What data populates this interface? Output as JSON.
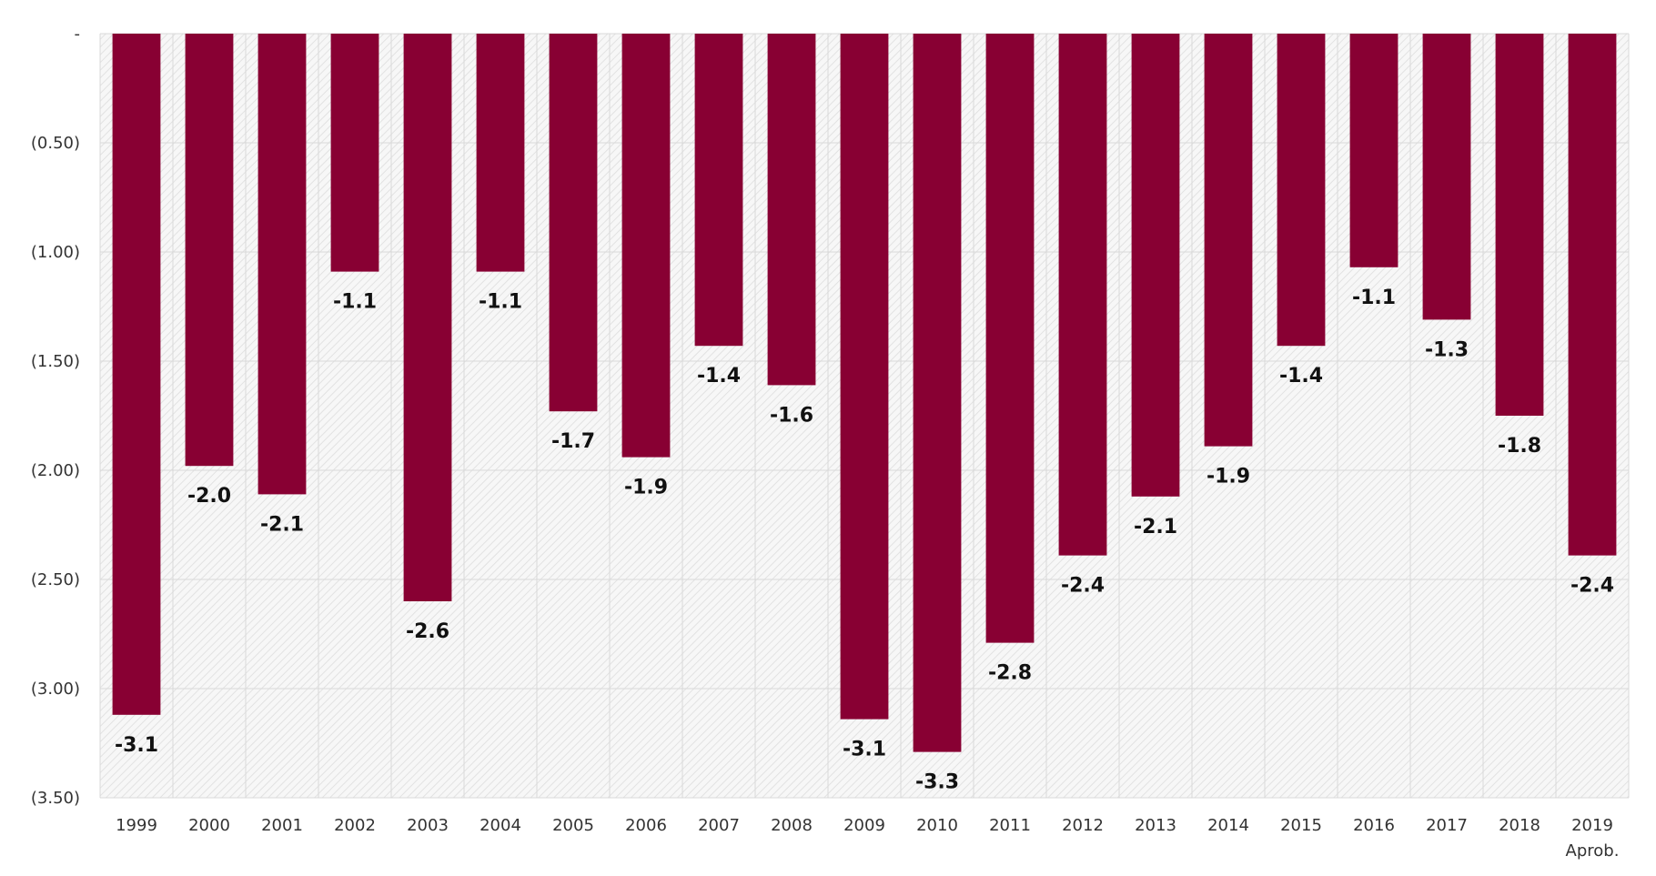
{
  "colors": {
    "bar": "#880033",
    "grid": "#d9d9d9",
    "hatch": "#e2e2e2",
    "text": "#333333"
  },
  "chart_data": {
    "type": "bar",
    "title": "",
    "xlabel": "",
    "ylabel": "",
    "categories": [
      "1999",
      "2000",
      "2001",
      "2002",
      "2003",
      "2004",
      "2005",
      "2006",
      "2007",
      "2008",
      "2009",
      "2010",
      "2011",
      "2012",
      "2013",
      "2014",
      "2015",
      "2016",
      "2017",
      "2018",
      "2019"
    ],
    "category_sublabels": {
      "2019": "Aprob."
    },
    "values": [
      -3.12,
      -1.98,
      -2.11,
      -1.09,
      -2.6,
      -1.09,
      -1.73,
      -1.94,
      -1.43,
      -1.61,
      -3.14,
      -3.29,
      -2.79,
      -2.39,
      -2.12,
      -1.89,
      -1.43,
      -1.07,
      -1.31,
      -1.75,
      -2.39
    ],
    "data_labels": [
      "-3.1",
      "-2.0",
      "-2.1",
      "-1.1",
      "-2.6",
      "-1.1",
      "-1.7",
      "-1.9",
      "-1.4",
      "-1.6",
      "-3.1",
      "-3.3",
      "-2.8",
      "-2.4",
      "-2.1",
      "-1.9",
      "-1.4",
      "-1.1",
      "-1.3",
      "-1.8",
      "-2.4"
    ],
    "ylim": [
      -3.5,
      0
    ],
    "yticks": [
      0,
      -0.5,
      -1.0,
      -1.5,
      -2.0,
      -2.5,
      -3.0,
      -3.5
    ],
    "ytick_labels": [
      "-",
      "(0.50)",
      "(1.00)",
      "(1.50)",
      "(2.00)",
      "(2.50)",
      "(3.00)",
      "(3.50)"
    ],
    "grid": true,
    "legend": "none"
  }
}
